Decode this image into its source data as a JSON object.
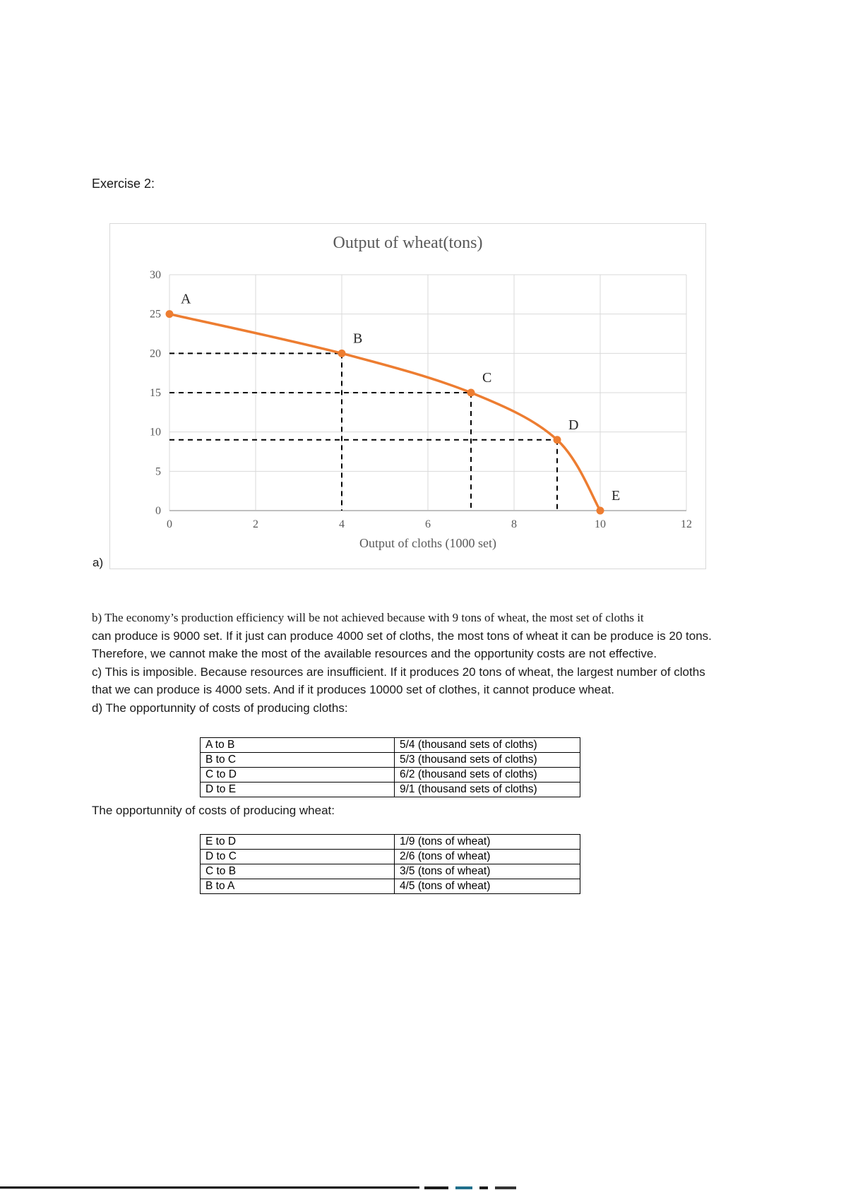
{
  "heading": "Exercise 2:",
  "label_a": "a)",
  "chart_data": {
    "type": "line",
    "title": "Output of wheat(tons)",
    "xlabel": "Output of cloths (1000 set)",
    "ylabel": "",
    "xlim": [
      0,
      12
    ],
    "ylim": [
      0,
      30
    ],
    "x_ticks": [
      0,
      2,
      4,
      6,
      8,
      10,
      12
    ],
    "y_ticks": [
      0,
      5,
      10,
      15,
      20,
      25,
      30
    ],
    "grid": true,
    "legend": false,
    "line_color": "#ED7D31",
    "grid_color": "#d9d9d9",
    "axis_color": "#bfbfbf",
    "tick_color": "#595959",
    "point_label_color": "#262626",
    "points": [
      {
        "label": "A",
        "x": 0,
        "y": 25
      },
      {
        "label": "B",
        "x": 4,
        "y": 20
      },
      {
        "label": "C",
        "x": 7,
        "y": 15
      },
      {
        "label": "D",
        "x": 9,
        "y": 9
      },
      {
        "label": "E",
        "x": 10,
        "y": 0
      }
    ],
    "dashed_guides": [
      {
        "x": 4,
        "y": 20
      },
      {
        "x": 7,
        "y": 15
      },
      {
        "x": 9,
        "y": 9
      }
    ]
  },
  "answers": {
    "b_line1": "b) The economy’s production efficiency will be not achieved because with 9 tons of wheat, the most set of cloths it",
    "b_line2": "can produce is 9000 set. If it just can produce 4000 set of cloths, the most tons of wheat it can be produce is 20 tons.",
    "b_line3": "Therefore, we cannot make the most of the available resources and the opportunity costs are not effective.",
    "c_line1": "c) This is imposible. Because resources are insufficient. If it produces 20 tons of wheat, the largest number of cloths",
    "c_line2": "that we can produce is 4000 sets. And if it produces 10000 set of clothes, it cannot produce wheat.",
    "d_line": "d) The opportunnity of costs of producing cloths:",
    "wheat_intro": "The opportunnity of costs of producing wheat:"
  },
  "tables": {
    "cloths": {
      "rows": [
        {
          "move": "A to B",
          "cost": "5/4 (thousand sets of cloths)"
        },
        {
          "move": "B to C",
          "cost": "5/3 (thousand sets of cloths)"
        },
        {
          "move": "C to D",
          "cost": "6/2 (thousand sets of cloths)"
        },
        {
          "move": "D to E",
          "cost": "9/1 (thousand sets of cloths)"
        }
      ]
    },
    "wheat": {
      "rows": [
        {
          "move": "E to D",
          "cost": "1/9 (tons of wheat)"
        },
        {
          "move": "D to C",
          "cost": "2/6 (tons of wheat)"
        },
        {
          "move": "C to B",
          "cost": "3/5 (tons of wheat)"
        },
        {
          "move": "B to A",
          "cost": "4/5 (tons of wheat)"
        }
      ]
    }
  }
}
